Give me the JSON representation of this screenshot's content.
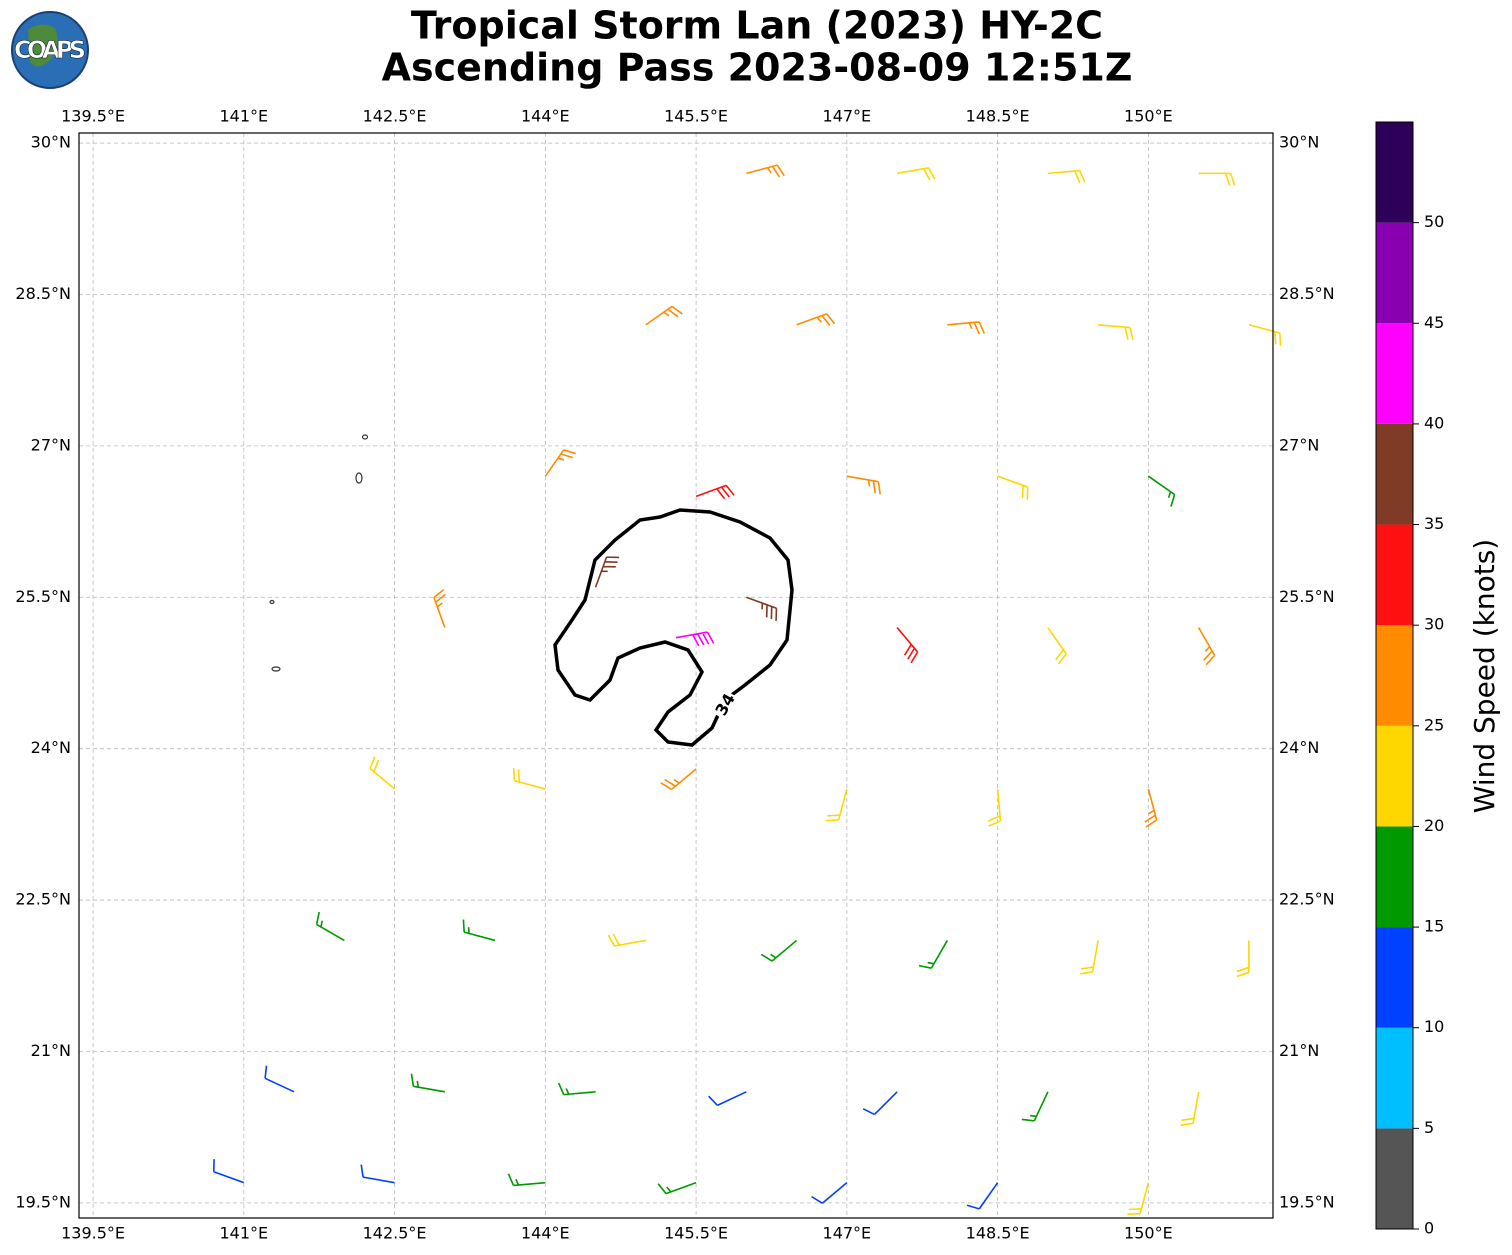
{
  "header": {
    "logo": "COAPS",
    "title": [
      "Tropical Storm Lan (2023) HY-2C",
      "Ascending Pass 2023-08-09 12:51Z"
    ]
  },
  "map": {
    "lonlim": [
      139.36,
      151.24
    ],
    "latlim": [
      19.35,
      30.1
    ],
    "lonticks": [
      {
        "value": 139.5,
        "label": "139.5°E"
      },
      {
        "value": 141,
        "label": "141°E"
      },
      {
        "value": 142.5,
        "label": "142.5°E"
      },
      {
        "value": 144,
        "label": "144°E"
      },
      {
        "value": 145.5,
        "label": "145.5°E"
      },
      {
        "value": 147,
        "label": "147°E"
      },
      {
        "value": 148.5,
        "label": "148.5°E"
      },
      {
        "value": 150,
        "label": "150°E"
      }
    ],
    "latticks": [
      {
        "value": 19.5,
        "label": "19.5°N"
      },
      {
        "value": 21,
        "label": "21°N"
      },
      {
        "value": 22.5,
        "label": "22.5°N"
      },
      {
        "value": 24,
        "label": "24°N"
      },
      {
        "value": 25.5,
        "label": "25.5°N"
      },
      {
        "value": 27,
        "label": "27°N"
      },
      {
        "value": 28.5,
        "label": "28.5°N"
      },
      {
        "value": 30,
        "label": "30°N"
      }
    ],
    "contour_label": "34",
    "barbs": [
      {
        "lon": 146,
        "lat": 29.7,
        "speed": 25,
        "dir": 75
      },
      {
        "lon": 147.5,
        "lat": 29.7,
        "speed": 20,
        "dir": 80
      },
      {
        "lon": 149,
        "lat": 29.7,
        "speed": 20,
        "dir": 85
      },
      {
        "lon": 150.5,
        "lat": 29.7,
        "speed": 20,
        "dir": 90
      },
      {
        "lon": 145,
        "lat": 28.2,
        "speed": 25,
        "dir": 55
      },
      {
        "lon": 146.5,
        "lat": 28.2,
        "speed": 25,
        "dir": 70
      },
      {
        "lon": 148,
        "lat": 28.2,
        "speed": 25,
        "dir": 85
      },
      {
        "lon": 149.5,
        "lat": 28.2,
        "speed": 20,
        "dir": 95
      },
      {
        "lon": 151,
        "lat": 28.2,
        "speed": 20,
        "dir": 105
      },
      {
        "lon": 144,
        "lat": 26.7,
        "speed": 25,
        "dir": 35
      },
      {
        "lon": 145.5,
        "lat": 26.5,
        "speed": 30,
        "dir": 70
      },
      {
        "lon": 147,
        "lat": 26.7,
        "speed": 25,
        "dir": 100
      },
      {
        "lon": 148.5,
        "lat": 26.7,
        "speed": 20,
        "dir": 110
      },
      {
        "lon": 150,
        "lat": 26.7,
        "speed": 15,
        "dir": 125
      },
      {
        "lon": 143,
        "lat": 25.2,
        "speed": 25,
        "dir": 340
      },
      {
        "lon": 144.5,
        "lat": 25.6,
        "speed": 35,
        "dir": 20
      },
      {
        "lon": 145.3,
        "lat": 25.1,
        "speed": 40,
        "dir": 80
      },
      {
        "lon": 146,
        "lat": 25.5,
        "speed": 35,
        "dir": 110
      },
      {
        "lon": 147.5,
        "lat": 25.2,
        "speed": 30,
        "dir": 140
      },
      {
        "lon": 149,
        "lat": 25.2,
        "speed": 20,
        "dir": 145
      },
      {
        "lon": 150.5,
        "lat": 25.2,
        "speed": 25,
        "dir": 150
      },
      {
        "lon": 142.5,
        "lat": 23.6,
        "speed": 20,
        "dir": 310
      },
      {
        "lon": 144,
        "lat": 23.6,
        "speed": 20,
        "dir": 285
      },
      {
        "lon": 145.5,
        "lat": 23.8,
        "speed": 25,
        "dir": 230
      },
      {
        "lon": 147,
        "lat": 23.6,
        "speed": 20,
        "dir": 195
      },
      {
        "lon": 148.5,
        "lat": 23.6,
        "speed": 20,
        "dir": 175
      },
      {
        "lon": 150,
        "lat": 23.6,
        "speed": 25,
        "dir": 165
      },
      {
        "lon": 142,
        "lat": 22.1,
        "speed": 15,
        "dir": 300
      },
      {
        "lon": 143.5,
        "lat": 22.1,
        "speed": 15,
        "dir": 285
      },
      {
        "lon": 145,
        "lat": 22.1,
        "speed": 20,
        "dir": 260
      },
      {
        "lon": 146.5,
        "lat": 22.1,
        "speed": 15,
        "dir": 230
      },
      {
        "lon": 148,
        "lat": 22.1,
        "speed": 15,
        "dir": 210
      },
      {
        "lon": 149.5,
        "lat": 22.1,
        "speed": 20,
        "dir": 190
      },
      {
        "lon": 151,
        "lat": 22.1,
        "speed": 20,
        "dir": 180
      },
      {
        "lon": 141.5,
        "lat": 20.6,
        "speed": 10,
        "dir": 295
      },
      {
        "lon": 143,
        "lat": 20.6,
        "speed": 15,
        "dir": 280
      },
      {
        "lon": 144.5,
        "lat": 20.6,
        "speed": 15,
        "dir": 265
      },
      {
        "lon": 146,
        "lat": 20.6,
        "speed": 10,
        "dir": 245
      },
      {
        "lon": 147.5,
        "lat": 20.6,
        "speed": 10,
        "dir": 225
      },
      {
        "lon": 149,
        "lat": 20.6,
        "speed": 15,
        "dir": 205
      },
      {
        "lon": 150.5,
        "lat": 20.6,
        "speed": 20,
        "dir": 190
      },
      {
        "lon": 141,
        "lat": 19.7,
        "speed": 10,
        "dir": 290
      },
      {
        "lon": 142.5,
        "lat": 19.7,
        "speed": 10,
        "dir": 280
      },
      {
        "lon": 144,
        "lat": 19.7,
        "speed": 15,
        "dir": 265
      },
      {
        "lon": 145.5,
        "lat": 19.7,
        "speed": 15,
        "dir": 250
      },
      {
        "lon": 147,
        "lat": 19.7,
        "speed": 10,
        "dir": 230
      },
      {
        "lon": 148.5,
        "lat": 19.7,
        "speed": 10,
        "dir": 215
      },
      {
        "lon": 150,
        "lat": 19.7,
        "speed": 20,
        "dir": 195
      }
    ]
  },
  "colorbar": {
    "label": "Wind Speed (knots)",
    "bounds": [
      0,
      5,
      10,
      15,
      20,
      25,
      30,
      35,
      40,
      45,
      50,
      55
    ],
    "ticks": [
      0,
      5,
      10,
      15,
      20,
      25,
      30,
      35,
      40,
      45,
      50
    ],
    "colors": [
      "#555555",
      "#00bfff",
      "#0040ff",
      "#009900",
      "#ffd700",
      "#ff8c00",
      "#ff1010",
      "#7f3b25",
      "#ff00ff",
      "#8800b0",
      "#2e0059"
    ]
  }
}
